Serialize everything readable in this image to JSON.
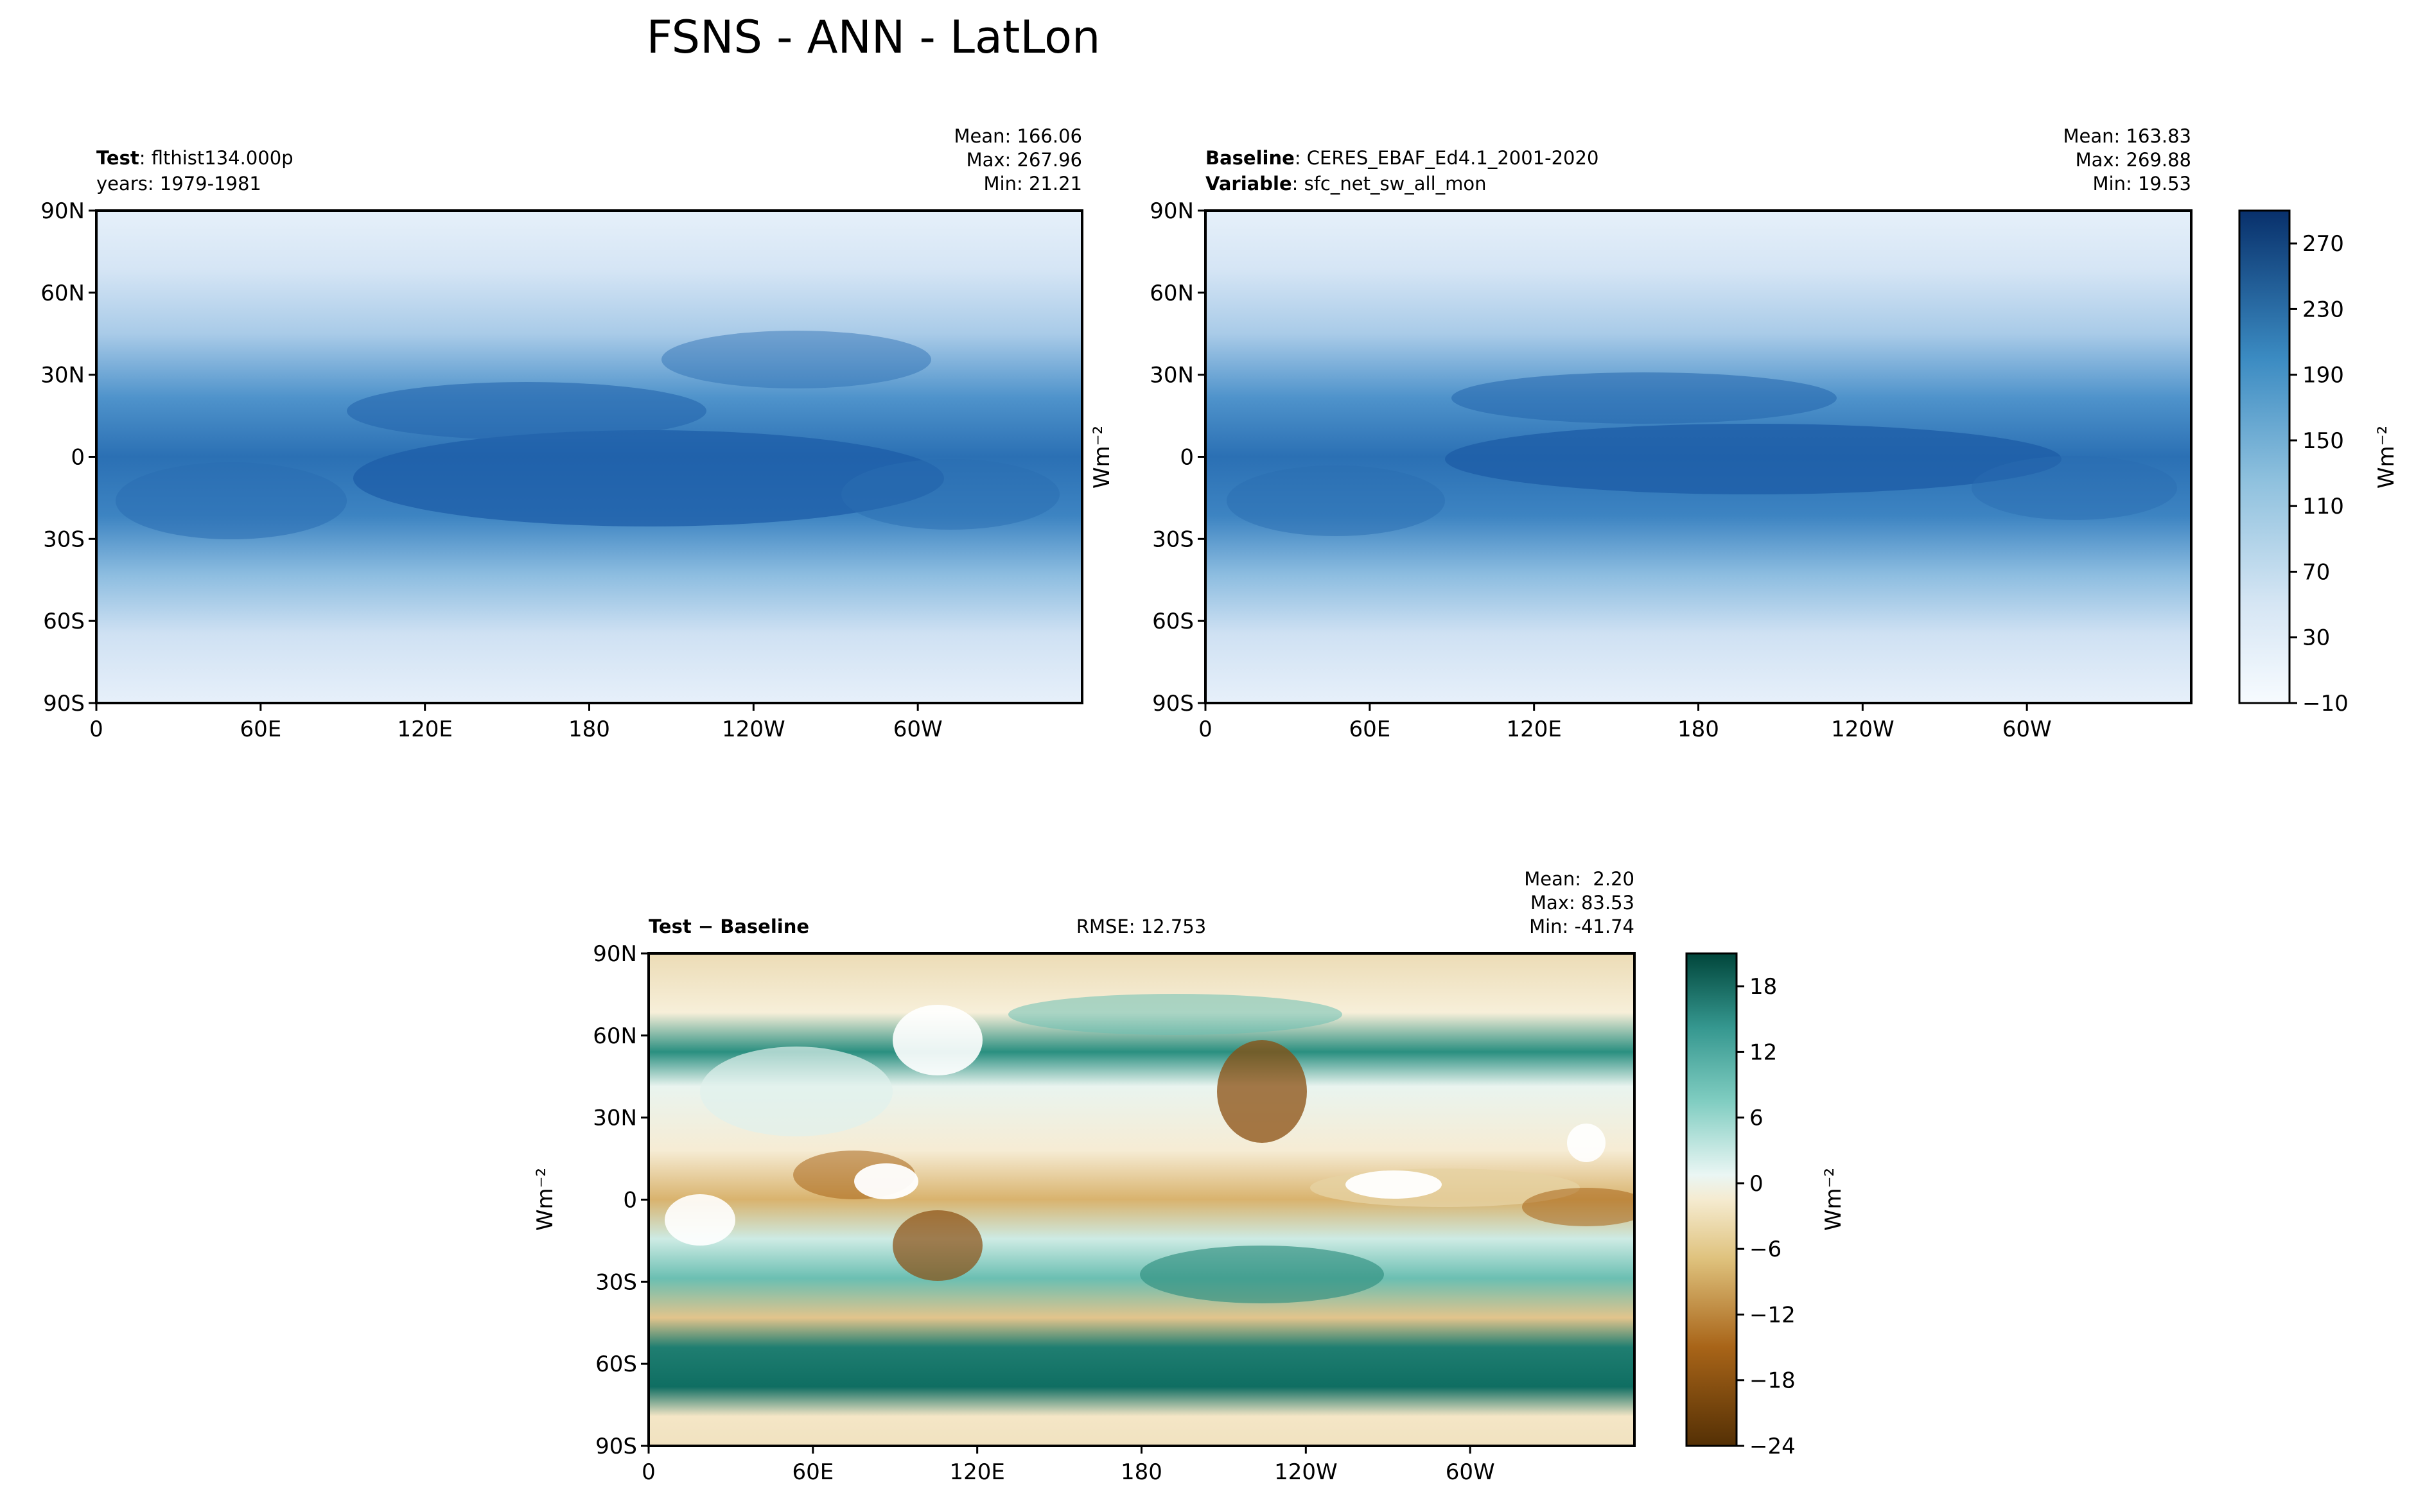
{
  "suptitle": "FSNS - ANN - LatLon",
  "colors": {
    "ocean_low": "#eaf2fb",
    "ocean_mid": "#6aaed6",
    "ocean_high": "#1c5aa6",
    "diff_pos": "#0f7a6a",
    "diff_neg": "#a86418",
    "coast": "#000000"
  },
  "chart_data": [
    {
      "id": "test",
      "type": "heatmap",
      "left_title_bold": "Test",
      "left_title_rest": ": flthist134.000p",
      "left_title_line2": "years: 1979-1981",
      "stats": [
        "Mean: 166.06",
        "Max: 267.96",
        "Min: 21.21"
      ],
      "xticks": [
        "0",
        "60E",
        "120E",
        "180",
        "120W",
        "60W"
      ],
      "yticks": [
        "90N",
        "60N",
        "30N",
        "0",
        "30S",
        "60S",
        "90S"
      ],
      "xlim": [
        0,
        360
      ],
      "ylim": [
        -90,
        90
      ],
      "grid": false
    },
    {
      "id": "baseline",
      "type": "heatmap",
      "left_title_line1_bold": "Baseline",
      "left_title_line1_rest": ": CERES_EBAF_Ed4.1_2001-2020",
      "left_title_line2_bold": "Variable",
      "left_title_line2_rest": ": sfc_net_sw_all_mon",
      "stats": [
        "Mean: 163.83",
        "Max: 269.88",
        "Min: 19.53"
      ],
      "xticks": [
        "0",
        "60E",
        "120E",
        "180",
        "120W",
        "60W"
      ],
      "yticks": [
        "90N",
        "60N",
        "30N",
        "0",
        "30S",
        "60S",
        "90S"
      ],
      "ylabel": "Wm⁻²",
      "colorbar": {
        "label": "Wm⁻²",
        "ticks": [
          "270",
          "230",
          "190",
          "150",
          "110",
          "70",
          "30",
          "−10"
        ],
        "range": [
          -10,
          290
        ]
      }
    },
    {
      "id": "diff",
      "type": "heatmap",
      "left_title_bold": "Test − Baseline",
      "center_title": "RMSE: 12.753",
      "stats": [
        "Mean:  2.20",
        "Max: 83.53",
        "Min: -41.74"
      ],
      "xticks": [
        "0",
        "60E",
        "120E",
        "180",
        "120W",
        "60W"
      ],
      "yticks": [
        "90N",
        "60N",
        "30N",
        "0",
        "30S",
        "60S",
        "90S"
      ],
      "ylabel": "Wm⁻²",
      "colorbar": {
        "label": "Wm⁻²",
        "ticks": [
          "18",
          "12",
          "6",
          "0",
          "−6",
          "−12",
          "−18",
          "−24"
        ],
        "range": [
          -24,
          21
        ]
      }
    }
  ]
}
